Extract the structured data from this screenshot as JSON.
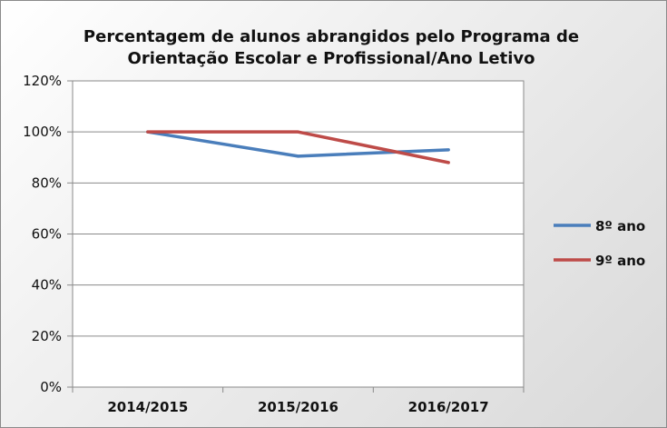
{
  "chart_data": {
    "type": "line",
    "title_line1": "Percentagem de alunos abrangidos pelo Programa de",
    "title_line2": "Orientação Escolar e Profissional/Ano Letivo",
    "categories": [
      "2014/2015",
      "2015/2016",
      "2016/2017"
    ],
    "y_ticks": [
      "0%",
      "20%",
      "40%",
      "60%",
      "80%",
      "100%",
      "120%"
    ],
    "ylim": [
      0,
      120
    ],
    "grid": true,
    "legend_position": "right",
    "series": [
      {
        "name": "8º ano",
        "color": "#4a7ebb",
        "values": [
          100,
          90.5,
          93
        ]
      },
      {
        "name": "9º ano",
        "color": "#be4b48",
        "values": [
          100,
          100,
          88
        ]
      }
    ]
  }
}
